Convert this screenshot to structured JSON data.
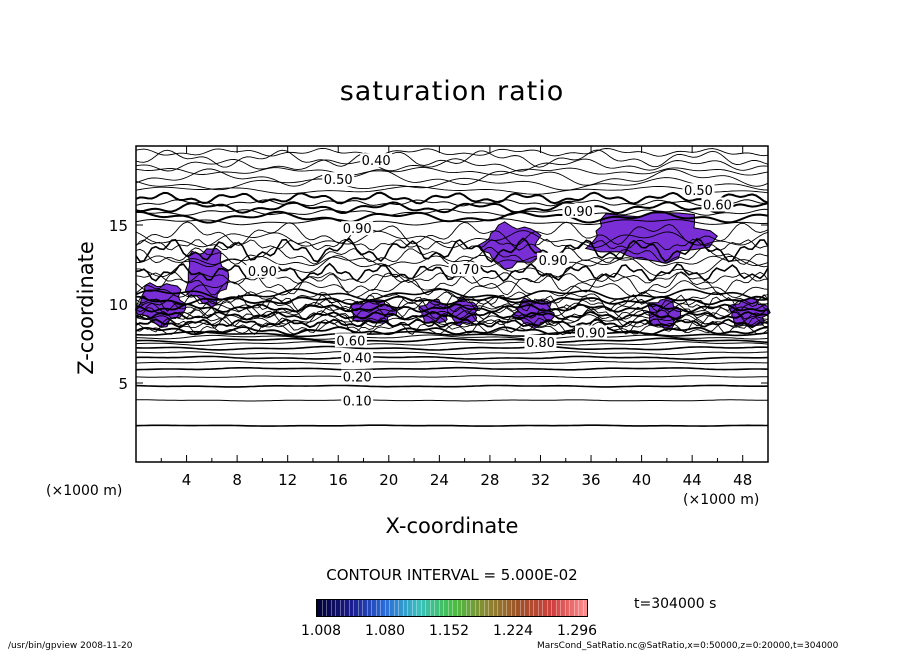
{
  "chart_data": {
    "type": "contour",
    "title": "saturation ratio",
    "xlabel": "X-coordinate",
    "ylabel": "Z-coordinate",
    "x_unit": "(×1000 m)",
    "xlim": [
      0,
      50
    ],
    "ylim": [
      0,
      20
    ],
    "x_ticks": [
      4,
      8,
      12,
      16,
      20,
      24,
      28,
      32,
      36,
      40,
      44,
      48
    ],
    "y_ticks": [
      5,
      10,
      15
    ],
    "contour_interval": "CONTOUR INTERVAL = 5.000E-02",
    "contour_labels": [
      {
        "text": "0.10",
        "x": 17.5,
        "z": 3.9
      },
      {
        "text": "0.20",
        "x": 17.5,
        "z": 5.4
      },
      {
        "text": "0.40",
        "x": 17.5,
        "z": 6.6
      },
      {
        "text": "0.60",
        "x": 17.0,
        "z": 7.7
      },
      {
        "text": "0.80",
        "x": 32.0,
        "z": 7.6
      },
      {
        "text": "0.90",
        "x": 36.0,
        "z": 8.2
      },
      {
        "text": "0.70",
        "x": 26.0,
        "z": 12.2
      },
      {
        "text": "0.90",
        "x": 33.0,
        "z": 12.8
      },
      {
        "text": "0.90",
        "x": 10.0,
        "z": 12.1
      },
      {
        "text": "0.90",
        "x": 35.0,
        "z": 15.9
      },
      {
        "text": "0.50",
        "x": 44.5,
        "z": 17.2
      },
      {
        "text": "0.60",
        "x": 46.0,
        "z": 16.3
      },
      {
        "text": "0.40",
        "x": 19.0,
        "z": 19.1
      },
      {
        "text": "0.50",
        "x": 16.0,
        "z": 17.9
      },
      {
        "text": "0.90",
        "x": 17.5,
        "z": 14.8
      }
    ],
    "colorbar": {
      "ticks": [
        "1.008",
        "1.080",
        "1.152",
        "1.224",
        "1.296"
      ],
      "colors": [
        "#000033",
        "#1a1a8c",
        "#2a6ad9",
        "#39c0c0",
        "#46c046",
        "#8a8a30",
        "#a05028",
        "#d04040",
        "#ff9090"
      ]
    },
    "fill_color": "#7a2ed6",
    "supersaturated_regions": [
      {
        "x": [
          0.2,
          3.8
        ],
        "z": [
          8.7,
          11.3
        ]
      },
      {
        "x": [
          4.0,
          7.2
        ],
        "z": [
          10.0,
          13.5
        ]
      },
      {
        "x": [
          17.0,
          20.5
        ],
        "z": [
          8.8,
          10.2
        ]
      },
      {
        "x": [
          22.5,
          24.8
        ],
        "z": [
          8.8,
          10.2
        ]
      },
      {
        "x": [
          24.8,
          27.0
        ],
        "z": [
          8.7,
          10.3
        ]
      },
      {
        "x": [
          27.5,
          32.0
        ],
        "z": [
          12.4,
          15.0
        ]
      },
      {
        "x": [
          30.0,
          33.0
        ],
        "z": [
          8.6,
          10.3
        ]
      },
      {
        "x": [
          36.0,
          45.5
        ],
        "z": [
          12.8,
          15.8
        ]
      },
      {
        "x": [
          40.5,
          43.0
        ],
        "z": [
          8.5,
          10.3
        ]
      },
      {
        "x": [
          47.0,
          50.0
        ],
        "z": [
          8.6,
          10.3
        ]
      }
    ]
  },
  "time_label": "t=304000 s",
  "footer_left": "/usr/bin/gpview   2008-11-20",
  "footer_right": "MarsCond_SatRatio.nc@SatRatio,x=0:50000,z=0:20000,t=304000"
}
